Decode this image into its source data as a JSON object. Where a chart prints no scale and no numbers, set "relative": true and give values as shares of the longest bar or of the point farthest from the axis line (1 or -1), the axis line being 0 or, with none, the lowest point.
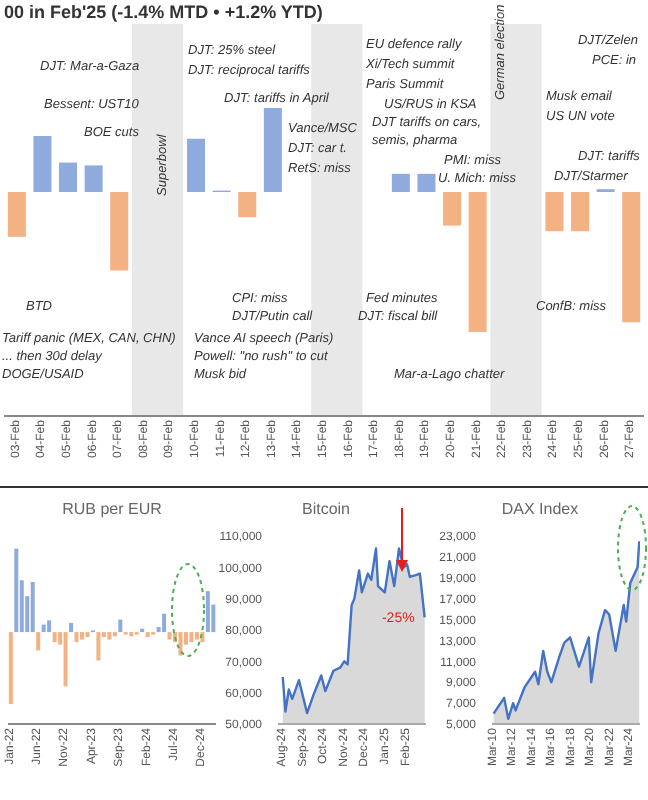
{
  "chart_data": [
    {
      "type": "bar",
      "title": "00 in Feb'25 (-1.4% MTD • +1.2% YTD)",
      "relative": true,
      "categories": [
        "03-Feb",
        "04-Feb",
        "05-Feb",
        "06-Feb",
        "07-Feb",
        "08-Feb",
        "09-Feb",
        "10-Feb",
        "11-Feb",
        "12-Feb",
        "13-Feb",
        "14-Feb",
        "15-Feb",
        "16-Feb",
        "17-Feb",
        "18-Feb",
        "19-Feb",
        "20-Feb",
        "21-Feb",
        "22-Feb",
        "23-Feb",
        "24-Feb",
        "25-Feb",
        "26-Feb",
        "27-Feb"
      ],
      "values": [
        -0.32,
        0.4,
        0.21,
        0.19,
        -0.56,
        null,
        null,
        0.38,
        0.01,
        -0.18,
        0.6,
        null,
        null,
        null,
        null,
        0.13,
        0.13,
        -0.24,
        -1,
        null,
        null,
        -0.28,
        -0.28,
        0.02,
        -0.93
      ],
      "colors": [
        "#f4b183",
        "#8faadc",
        "#8faadc",
        "#8faadc",
        "#f4b183",
        "#8faadc",
        "#8faadc",
        "#8faadc",
        "#8faadc",
        "#f4b183",
        "#8faadc",
        "#8faadc",
        "#8faadc",
        "#8faadc",
        "#8faadc",
        "#8faadc",
        "#8faadc",
        "#f4b183",
        "#f4b183",
        "#8faadc",
        "#8faadc",
        "#f4b183",
        "#f4b183",
        "#8faadc",
        "#f4b183"
      ],
      "bands": [
        {
          "axis": "x",
          "from": "08-Feb",
          "to": "09-Feb",
          "color": "#e8e8e8"
        },
        {
          "axis": "x",
          "from": "15-Feb",
          "to": "16-Feb",
          "color": "#e8e8e8"
        },
        {
          "axis": "x",
          "from": "22-Feb",
          "to": "23-Feb",
          "color": "#e8e8e8"
        }
      ],
      "annotations": [
        "DJT: Mar-a-Gaza",
        "Bessent: UST10",
        "BOE cuts",
        "Superbowl",
        "DJT: 25% steel",
        "DJT: reciprocal tariffs",
        "DJT: tariffs in April",
        "Vance/MSC",
        "DJT: car t.",
        "RetS: miss",
        "EU defence rally",
        "Xi/Tech summit",
        "Paris Summit",
        "US/RUS in KSA",
        "DJT tariffs on cars,",
        "semis, pharma",
        "PMI: miss",
        "U. Mich: miss",
        "German election",
        "DJT/Zelen",
        "PCE: in",
        "Musk email",
        "US UN vote",
        "DJT: tariffs",
        "DJT/Starmer",
        "BTD",
        "Tariff panic (MEX, CAN, CHN)",
        "... then 30d delay",
        "DOGE/USAID",
        "CPI: miss",
        "DJT/Putin call",
        "Vance AI speech (Paris)",
        "Powell: \"no rush\" to cut",
        "Musk bid",
        "Fed minutes",
        "DJT: fiscal bill",
        "Mar-a-Lago chatter",
        "ConfB: miss"
      ]
    },
    {
      "type": "bar",
      "title": "RUB per EUR",
      "relative": true,
      "categories": [
        "Jan-22",
        null,
        null,
        null,
        null,
        "Jun-22",
        null,
        null,
        null,
        null,
        "Nov-22",
        null,
        null,
        null,
        null,
        "Apr-23",
        null,
        null,
        null,
        null,
        "Sep-23",
        null,
        null,
        null,
        null,
        "Feb-24",
        null,
        null,
        null,
        null,
        "Jul-24",
        null,
        null,
        null,
        null,
        "Dec-24",
        null,
        null
      ],
      "values": [
        -0.86,
        1,
        0.62,
        0.43,
        0.6,
        -0.22,
        0.09,
        0.14,
        -0.12,
        -0.15,
        -0.65,
        0.11,
        -0.12,
        -0.09,
        -0.06,
        0.02,
        -0.34,
        -0.06,
        -0.09,
        -0.05,
        0.15,
        -0.03,
        -0.05,
        -0.03,
        0.04,
        -0.06,
        -0.03,
        0.06,
        0.22,
        -0.09,
        -0.12,
        -0.28,
        -0.15,
        -0.12,
        -0.09,
        -0.12,
        0.49,
        0.33
      ],
      "colors": [
        "#f4b183",
        "#8faadc",
        "#8faadc",
        "#8faadc",
        "#8faadc",
        "#f4b183",
        "#8faadc",
        "#8faadc",
        "#f4b183",
        "#f4b183",
        "#f4b183",
        "#8faadc",
        "#f4b183",
        "#f4b183",
        "#f4b183",
        "#8faadc",
        "#f4b183",
        "#f4b183",
        "#f4b183",
        "#f4b183",
        "#8faadc",
        "#f4b183",
        "#f4b183",
        "#f4b183",
        "#8faadc",
        "#f4b183",
        "#f4b183",
        "#8faadc",
        "#8faadc",
        "#f4b183",
        "#f4b183",
        "#f4b183",
        "#f4b183",
        "#f4b183",
        "#f4b183",
        "#f4b183",
        "#8faadc",
        "#8faadc"
      ]
    },
    {
      "type": "area",
      "title": "Bitcoin",
      "color": "#4472c4",
      "x": [
        "2024-08-01",
        "2024-08-05",
        "2024-08-10",
        "2024-08-15",
        "2024-08-25",
        "2024-09-06",
        "2024-09-15",
        "2024-09-27",
        "2024-10-03",
        "2024-10-15",
        "2024-10-25",
        "2024-10-31",
        "2024-11-05",
        "2024-11-11",
        "2024-11-15",
        "2024-11-22",
        "2024-11-26",
        "2024-12-05",
        "2024-12-10",
        "2024-12-17",
        "2024-12-20",
        "2024-12-30",
        "2025-01-06",
        "2025-01-13",
        "2025-01-20",
        "2025-01-27",
        "2025-02-01",
        "2025-02-05",
        "2025-02-14",
        "2025-02-20",
        "2025-02-25",
        "2025-02-27"
      ],
      "values": [
        65000,
        54000,
        61000,
        58000,
        64000,
        53500,
        59000,
        65500,
        60500,
        67000,
        68000,
        70000,
        69000,
        88000,
        90000,
        99000,
        92000,
        98000,
        96000,
        106000,
        94000,
        92000,
        102000,
        94000,
        106000,
        100000,
        101000,
        97000,
        97500,
        98000,
        88000,
        84000
      ],
      "xlim": [
        "2024-07-25",
        "2025-03-01"
      ],
      "xticks": [
        {
          "value": "2024-08-01",
          "label": "Aug-24"
        },
        {
          "value": "2024-09-01",
          "label": "Sep-24"
        },
        {
          "value": "2024-10-01",
          "label": "Oct-24"
        },
        {
          "value": "2024-11-01",
          "label": "Nov-24"
        },
        {
          "value": "2024-12-01",
          "label": "Dec-24"
        },
        {
          "value": "2025-01-01",
          "label": "Jan-25"
        },
        {
          "value": "2025-02-01",
          "label": "Feb-25"
        }
      ],
      "ylim": [
        50000,
        110000
      ],
      "yticks": [
        {
          "value": 50000,
          "label": "50,000"
        },
        {
          "value": 60000,
          "label": "60,000"
        },
        {
          "value": 70000,
          "label": "70,000"
        },
        {
          "value": 80000,
          "label": "80,000"
        },
        {
          "value": 90000,
          "label": "90,000"
        },
        {
          "value": 100000,
          "label": "100,000"
        },
        {
          "value": 110000,
          "label": "110,000"
        }
      ],
      "annotations": [
        {
          "text": "-25%",
          "x": "2025-02-27",
          "y": 84000
        }
      ]
    },
    {
      "type": "area",
      "title": "DAX Index",
      "color": "#4472c4",
      "x": [
        "2010-03",
        "2011-04",
        "2011-09",
        "2012-03",
        "2012-06",
        "2013-05",
        "2014-06",
        "2014-10",
        "2015-04",
        "2015-09",
        "2016-02",
        "2016-12",
        "2017-06",
        "2018-01",
        "2018-12",
        "2019-12",
        "2020-03",
        "2020-12",
        "2021-08",
        "2022-01",
        "2022-09",
        "2023-07",
        "2023-10",
        "2024-03",
        "2024-12",
        "2025-02"
      ],
      "values": [
        6000,
        7500,
        5500,
        7000,
        6300,
        8500,
        10000,
        8800,
        12000,
        10000,
        9000,
        11500,
        12800,
        13300,
        10500,
        13300,
        9000,
        13700,
        15900,
        15500,
        12000,
        16400,
        14800,
        18500,
        20000,
        22500
      ],
      "xlim": [
        "2010-01",
        "2025-03"
      ],
      "xticks": [
        {
          "value": "2010-03",
          "label": "Mar-10"
        },
        {
          "value": "2012-03",
          "label": "Mar-12"
        },
        {
          "value": "2014-03",
          "label": "Mar-14"
        },
        {
          "value": "2016-03",
          "label": "Mar-16"
        },
        {
          "value": "2018-03",
          "label": "Mar-18"
        },
        {
          "value": "2020-03",
          "label": "Mar-20"
        },
        {
          "value": "2022-03",
          "label": "Mar-22"
        },
        {
          "value": "2024-03",
          "label": "Mar-24"
        }
      ],
      "ylim": [
        5000,
        23000
      ],
      "yticks": [
        {
          "value": 5000,
          "label": "5,000"
        },
        {
          "value": 7000,
          "label": "7,000"
        },
        {
          "value": 9000,
          "label": "9,000"
        },
        {
          "value": 11000,
          "label": "11,000"
        },
        {
          "value": 13000,
          "label": "13,000"
        },
        {
          "value": 15000,
          "label": "15,000"
        },
        {
          "value": 17000,
          "label": "17,000"
        },
        {
          "value": 19000,
          "label": "19,000"
        },
        {
          "value": 21000,
          "label": "21,000"
        },
        {
          "value": 23000,
          "label": "23,000"
        }
      ]
    }
  ]
}
